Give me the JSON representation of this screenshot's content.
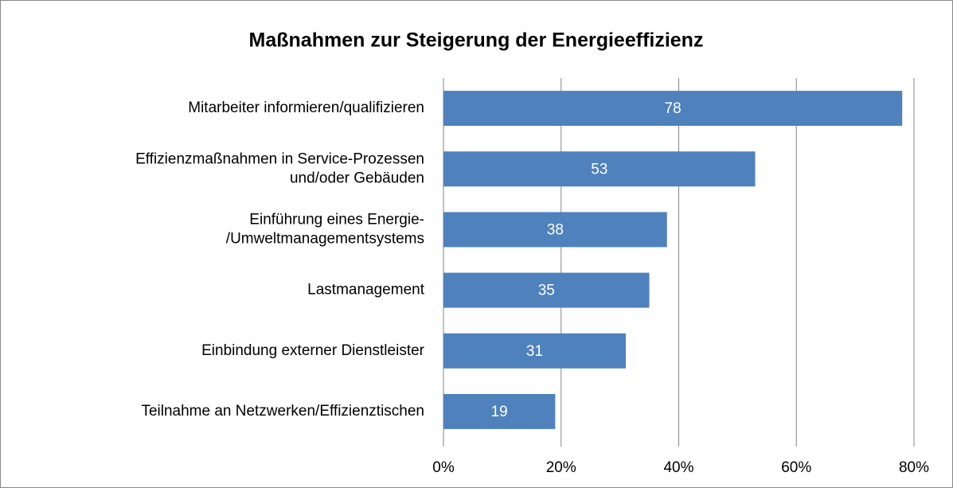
{
  "chart_data": {
    "type": "barh",
    "title": "Maßnahmen zur Steigerung der Energieeffizienz",
    "categories": [
      "Mitarbeiter informieren/qualifizieren",
      "Effizienzmaßnahmen in Service-Prozessen\nund/oder Gebäuden",
      "Einführung eines Energie-\n/Umweltmanagementsystems",
      "Lastmanagement",
      "Einbindung externer Dienstleister",
      "Teilnahme an Netzwerken/Effizienztischen"
    ],
    "values": [
      78,
      53,
      38,
      35,
      31,
      19
    ],
    "color": "#4f81bd",
    "xlim": [
      0,
      80
    ],
    "xticks": [
      {
        "value": 0,
        "label": "0%"
      },
      {
        "value": 20,
        "label": "20%"
      },
      {
        "value": 40,
        "label": "40%"
      },
      {
        "value": 60,
        "label": "60%"
      },
      {
        "value": 80,
        "label": "80%"
      }
    ],
    "grid": true
  }
}
